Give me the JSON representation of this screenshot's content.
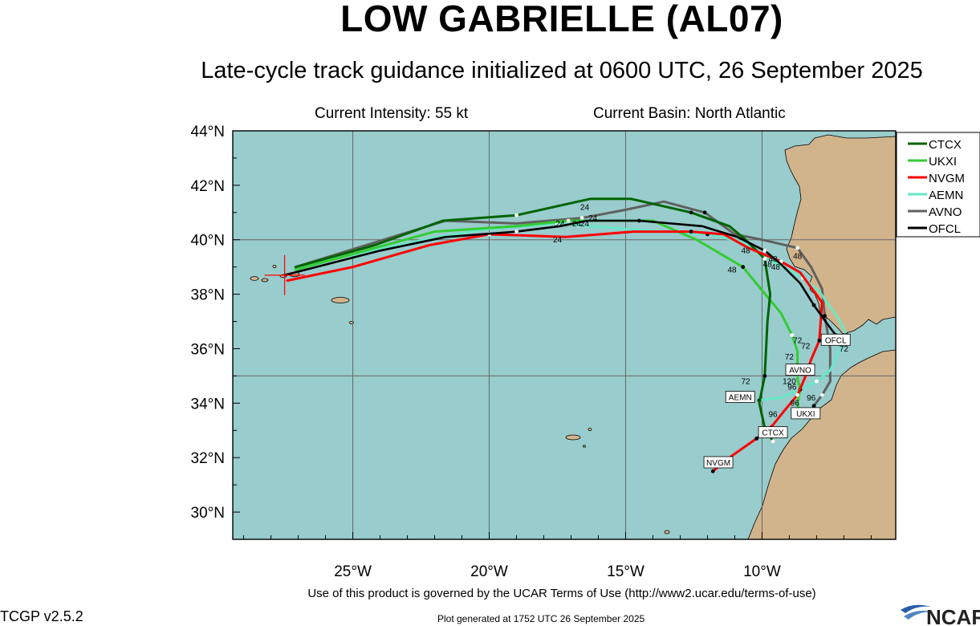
{
  "header": {
    "title": "LOW GABRIELLE (AL07)",
    "subtitle": "Late-cycle track guidance initialized at 0600 UTC, 26 September 2025",
    "intensity": "Current Intensity: 55 kt",
    "basin": "Current Basin: North Atlantic"
  },
  "footer": {
    "terms": "Use of this product is governed by the UCAR Terms of Use (http://www2.ucar.edu/terms-of-use)",
    "version": "TCGP v2.5.2",
    "generated": "Plot generated at 1752 UTC   26 September 2025",
    "logo_text": "NCAR"
  },
  "axes": {
    "lat_labels": [
      "44°N",
      "42°N",
      "40°N",
      "38°N",
      "36°N",
      "34°N",
      "32°N",
      "30°N"
    ],
    "lat_values": [
      44,
      42,
      40,
      38,
      36,
      34,
      32,
      30
    ],
    "lon_labels": [
      "25°W",
      "20°W",
      "15°W",
      "10°W"
    ],
    "lon_values": [
      -25,
      -20,
      -15,
      -10
    ],
    "lon_range": [
      -29.4,
      -5.1
    ],
    "lat_range": [
      29.0,
      44.0
    ]
  },
  "colors": {
    "ocean": "#99cccc",
    "land": "#d2b48c",
    "CTCX": "#006400",
    "UKXI": "#33cc33",
    "NVGM": "#ff0000",
    "AEMN": "#66e8c8",
    "AVNO": "#606060",
    "OFCL": "#000000"
  },
  "legend": [
    "CTCX",
    "UKXI",
    "NVGM",
    "AEMN",
    "AVNO",
    "OFCL"
  ],
  "current_position": {
    "lon": -27.5,
    "lat": 38.7
  },
  "chart_data": {
    "type": "scatter",
    "series": [
      {
        "name": "CTCX",
        "points": [
          [
            -27.1,
            39.0
          ],
          [
            -24.2,
            39.8
          ],
          [
            -21.7,
            40.7
          ],
          [
            -19.0,
            40.9
          ],
          [
            -16.3,
            41.5
          ],
          [
            -14.8,
            41.5
          ],
          [
            -12.6,
            41.0
          ],
          [
            -11.2,
            40.5
          ],
          [
            -10.6,
            40.0
          ],
          [
            -9.9,
            39.3
          ],
          [
            -9.7,
            38.0
          ],
          [
            -9.8,
            37.0
          ],
          [
            -9.9,
            35.0
          ],
          [
            -10.1,
            34.0
          ],
          [
            -9.9,
            33.1
          ],
          [
            -9.6,
            32.6
          ]
        ]
      },
      {
        "name": "UKXI",
        "points": [
          [
            -27.1,
            38.9
          ],
          [
            -22.0,
            40.3
          ],
          [
            -19.0,
            40.5
          ],
          [
            -17.1,
            40.7
          ],
          [
            -14.0,
            40.7
          ],
          [
            -12.4,
            40.0
          ],
          [
            -10.7,
            39.0
          ],
          [
            -9.8,
            37.9
          ],
          [
            -9.3,
            37.3
          ],
          [
            -8.9,
            36.5
          ],
          [
            -8.7,
            35.9
          ],
          [
            -8.7,
            34.9
          ],
          [
            -8.6,
            34.5
          ],
          [
            -8.7,
            34.0
          ],
          [
            -8.6,
            33.5
          ]
        ]
      },
      {
        "name": "NVGM",
        "points": [
          [
            -27.4,
            38.5
          ],
          [
            -25.0,
            39.0
          ],
          [
            -22.2,
            39.8
          ],
          [
            -20.0,
            40.2
          ],
          [
            -17.2,
            40.1
          ],
          [
            -14.7,
            40.3
          ],
          [
            -12.6,
            40.3
          ],
          [
            -11.4,
            40.2
          ],
          [
            -10.5,
            39.7
          ],
          [
            -9.3,
            39.2
          ],
          [
            -8.6,
            38.8
          ],
          [
            -7.8,
            37.7
          ],
          [
            -7.9,
            36.3
          ],
          [
            -8.2,
            35.6
          ],
          [
            -8.4,
            35.0
          ],
          [
            -8.7,
            34.3
          ],
          [
            -9.2,
            33.7
          ],
          [
            -9.6,
            33.2
          ],
          [
            -10.2,
            32.7
          ],
          [
            -11.2,
            32.0
          ],
          [
            -11.8,
            31.5
          ]
        ]
      },
      {
        "name": "AEMN",
        "points": [
          [
            -27.1,
            39.0
          ],
          [
            -21.9,
            40.1
          ],
          [
            -20.0,
            40.4
          ],
          [
            -17.5,
            40.6
          ],
          [
            -15.0,
            40.4
          ],
          [
            -13.4,
            40.3
          ],
          [
            -12.0,
            40.2
          ],
          [
            -10.6,
            39.9
          ],
          [
            -9.6,
            39.2
          ],
          [
            -8.5,
            38.6
          ],
          [
            -7.9,
            38.1
          ],
          [
            -7.2,
            37.1
          ],
          [
            -6.9,
            36.5
          ],
          [
            -7.2,
            35.9
          ],
          [
            -7.5,
            35.2
          ],
          [
            -8.0,
            34.8
          ],
          [
            -8.6,
            34.5
          ],
          [
            -9.3,
            34.2
          ],
          [
            -10.1,
            34.1
          ]
        ]
      },
      {
        "name": "AVNO",
        "points": [
          [
            -27.1,
            39.0
          ],
          [
            -21.6,
            40.7
          ],
          [
            -19.0,
            40.6
          ],
          [
            -16.6,
            40.8
          ],
          [
            -15.0,
            41.1
          ],
          [
            -13.6,
            41.4
          ],
          [
            -12.1,
            41.0
          ],
          [
            -11.0,
            40.2
          ],
          [
            -10.0,
            40.0
          ],
          [
            -8.7,
            39.7
          ],
          [
            -8.2,
            39.0
          ],
          [
            -7.8,
            38.2
          ],
          [
            -7.7,
            37.2
          ],
          [
            -7.5,
            36.0
          ],
          [
            -7.5,
            34.8
          ],
          [
            -7.8,
            34.3
          ],
          [
            -8.1,
            33.9
          ]
        ]
      },
      {
        "name": "OFCL",
        "points": [
          [
            -27.5,
            38.7
          ],
          [
            -24.0,
            39.6
          ],
          [
            -21.6,
            40.1
          ],
          [
            -19.0,
            40.3
          ],
          [
            -17.4,
            40.5
          ],
          [
            -16.4,
            40.7
          ],
          [
            -14.5,
            40.7
          ],
          [
            -12.2,
            40.5
          ],
          [
            -10.9,
            40.1
          ],
          [
            -9.9,
            39.6
          ],
          [
            -9.3,
            39.1
          ],
          [
            -8.6,
            38.4
          ],
          [
            -8.1,
            37.6
          ],
          [
            -7.6,
            36.9
          ],
          [
            -7.3,
            36.5
          ]
        ]
      }
    ],
    "hour_labels": [
      {
        "text": "24",
        "lon": -16.5,
        "lat": 41.1
      },
      {
        "text": "24",
        "lon": -17.4,
        "lat": 40.5
      },
      {
        "text": "24",
        "lon": -17.5,
        "lat": 39.9
      },
      {
        "text": "24",
        "lon": -16.8,
        "lat": 40.5
      },
      {
        "text": "24",
        "lon": -16.5,
        "lat": 40.5
      },
      {
        "text": "24",
        "lon": -16.2,
        "lat": 40.7
      },
      {
        "text": "48",
        "lon": -10.6,
        "lat": 39.5
      },
      {
        "text": "48",
        "lon": -11.1,
        "lat": 38.8
      },
      {
        "text": "48",
        "lon": -9.8,
        "lat": 39.0
      },
      {
        "text": "48",
        "lon": -9.6,
        "lat": 39.2
      },
      {
        "text": "48",
        "lon": -9.5,
        "lat": 38.9
      },
      {
        "text": "48",
        "lon": -8.7,
        "lat": 39.3
      },
      {
        "text": "72",
        "lon": -8.7,
        "lat": 36.2
      },
      {
        "text": "72",
        "lon": -8.4,
        "lat": 36.0
      },
      {
        "text": "72",
        "lon": -7.0,
        "lat": 35.9
      },
      {
        "text": "72",
        "lon": -9.0,
        "lat": 35.6
      },
      {
        "text": "72",
        "lon": -10.6,
        "lat": 34.7
      },
      {
        "text": "96",
        "lon": -8.9,
        "lat": 34.5
      },
      {
        "text": "96",
        "lon": -8.2,
        "lat": 34.1
      },
      {
        "text": "96",
        "lon": -8.8,
        "lat": 33.9
      },
      {
        "text": "96",
        "lon": -9.6,
        "lat": 33.5
      },
      {
        "text": "120",
        "lon": -9.0,
        "lat": 34.7
      }
    ],
    "end_labels": [
      {
        "text": "CTCX",
        "lon": -9.6,
        "lat": 32.9
      },
      {
        "text": "UKXI",
        "lon": -8.4,
        "lat": 33.6
      },
      {
        "text": "NVGM",
        "lon": -11.6,
        "lat": 31.8
      },
      {
        "text": "AEMN",
        "lon": -10.8,
        "lat": 34.2
      },
      {
        "text": "AVNO",
        "lon": -8.6,
        "lat": 35.2
      },
      {
        "text": "OFCL",
        "lon": -7.3,
        "lat": 36.3
      }
    ]
  }
}
